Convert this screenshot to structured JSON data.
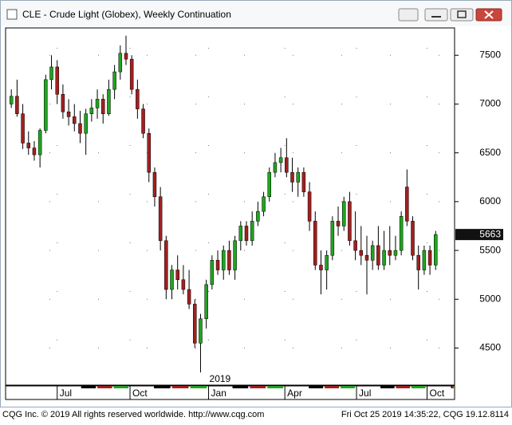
{
  "chart_data": {
    "type": "candlestick",
    "title": "CLE - Crude Light (Globex), Weekly Continuation",
    "footer_left": "CQG Inc. © 2019 All rights reserved worldwide. http://www.cqg.com",
    "footer_right": "Fri Oct 25 2019 14:35:22, CQG 19.12.8114",
    "year_label": "2019",
    "up_color": "#1fa51f",
    "down_color": "#a31f1f",
    "grid": true,
    "categories": [
      null,
      null,
      null,
      null,
      null,
      null,
      null,
      null,
      null,
      null,
      null,
      null,
      null,
      null,
      null,
      null,
      null,
      null,
      null,
      null,
      null,
      null,
      null,
      null,
      null,
      null,
      null,
      null,
      null,
      null,
      null,
      null,
      null,
      null,
      null,
      null,
      null,
      null,
      null,
      null,
      null,
      null,
      null,
      null,
      null,
      null,
      null,
      null,
      null,
      null,
      null,
      null,
      null,
      null,
      null,
      null,
      null,
      null,
      null,
      null,
      null,
      null,
      null,
      null,
      null,
      null,
      null,
      null,
      null,
      null,
      null,
      null,
      null,
      null,
      null
    ],
    "open": [
      7000,
      7080,
      6900,
      6600,
      6550,
      6480,
      6730,
      7250,
      7380,
      7100,
      6920,
      6870,
      6800,
      6700,
      6900,
      6960,
      7050,
      6900,
      7150,
      7330,
      7520,
      7460,
      7150,
      6950,
      6700,
      6300,
      6050,
      5600,
      5100,
      5300,
      5200,
      5100,
      4950,
      4550,
      4800,
      5150,
      5400,
      5300,
      5500,
      5300,
      5600,
      5750,
      5600,
      5800,
      5900,
      6050,
      6300,
      6400,
      6450,
      6300,
      6200,
      6300,
      6100,
      5800,
      5350,
      5300,
      5450,
      5800,
      5750,
      6000,
      5600,
      5500,
      5450,
      5400,
      5550,
      5350,
      5500,
      5450,
      5500,
      6150,
      5800,
      5450,
      5300,
      5500,
      5350
    ],
    "high": [
      7150,
      7250,
      7000,
      6720,
      6620,
      6750,
      7300,
      7500,
      7450,
      7200,
      7050,
      7000,
      6930,
      6950,
      7050,
      7150,
      7100,
      7250,
      7400,
      7600,
      7700,
      7500,
      7250,
      7000,
      6750,
      6350,
      6150,
      5650,
      5350,
      5450,
      5350,
      5300,
      5000,
      4850,
      5200,
      5450,
      5500,
      5550,
      5600,
      5650,
      5800,
      5800,
      5900,
      6000,
      6100,
      6350,
      6500,
      6550,
      6650,
      6450,
      6350,
      6350,
      6200,
      5900,
      5500,
      5500,
      5850,
      5950,
      6050,
      6100,
      5900,
      5750,
      5650,
      5600,
      5750,
      5700,
      5750,
      5650,
      5900,
      6330,
      5850,
      5550,
      5550,
      5550,
      5700
    ],
    "low": [
      6960,
      6870,
      6540,
      6480,
      6420,
      6350,
      6700,
      7150,
      7000,
      6850,
      6780,
      6720,
      6600,
      6480,
      6820,
      6850,
      6800,
      6880,
      7050,
      7250,
      7400,
      7100,
      6850,
      6650,
      6200,
      5950,
      5500,
      5000,
      5000,
      5100,
      5050,
      4900,
      4500,
      4250,
      4700,
      5100,
      5250,
      5200,
      5250,
      5200,
      5500,
      5550,
      5550,
      5750,
      5850,
      6000,
      6250,
      6300,
      6250,
      6100,
      6050,
      6050,
      5700,
      5300,
      5050,
      5100,
      5400,
      5650,
      5700,
      5550,
      5400,
      5350,
      5050,
      5300,
      5300,
      5300,
      5350,
      5400,
      5450,
      5750,
      5400,
      5100,
      5250,
      5250,
      5300
    ],
    "close": [
      7080,
      6900,
      6600,
      6550,
      6480,
      6730,
      7250,
      7380,
      7100,
      6920,
      6870,
      6800,
      6700,
      6900,
      6960,
      7050,
      6900,
      7150,
      7330,
      7520,
      7460,
      7150,
      6950,
      6700,
      6300,
      6050,
      5600,
      5100,
      5300,
      5200,
      5100,
      4950,
      4550,
      4800,
      5150,
      5400,
      5300,
      5500,
      5300,
      5600,
      5750,
      5600,
      5800,
      5900,
      6050,
      6300,
      6400,
      6450,
      6300,
      6200,
      6300,
      6100,
      5800,
      5350,
      5300,
      5450,
      5800,
      5750,
      6000,
      5600,
      5500,
      5450,
      5400,
      5550,
      5350,
      5500,
      5450,
      5500,
      5850,
      5800,
      5450,
      5300,
      5500,
      5350,
      5663
    ],
    "xlim": [
      -1,
      77.3
    ],
    "xticks": [
      {
        "value": 8,
        "label": "Jul"
      },
      {
        "value": 20.7,
        "label": "Oct"
      },
      {
        "value": 34.4,
        "label": "Jan"
      },
      {
        "value": 47.7,
        "label": "Apr"
      },
      {
        "value": 60.2,
        "label": "Jul"
      },
      {
        "value": 72.5,
        "label": "Oct"
      }
    ],
    "ylim": [
      4120,
      7780
    ],
    "yticks": [
      4500,
      5000,
      5500,
      6000,
      6500,
      7000,
      7500
    ]
  }
}
